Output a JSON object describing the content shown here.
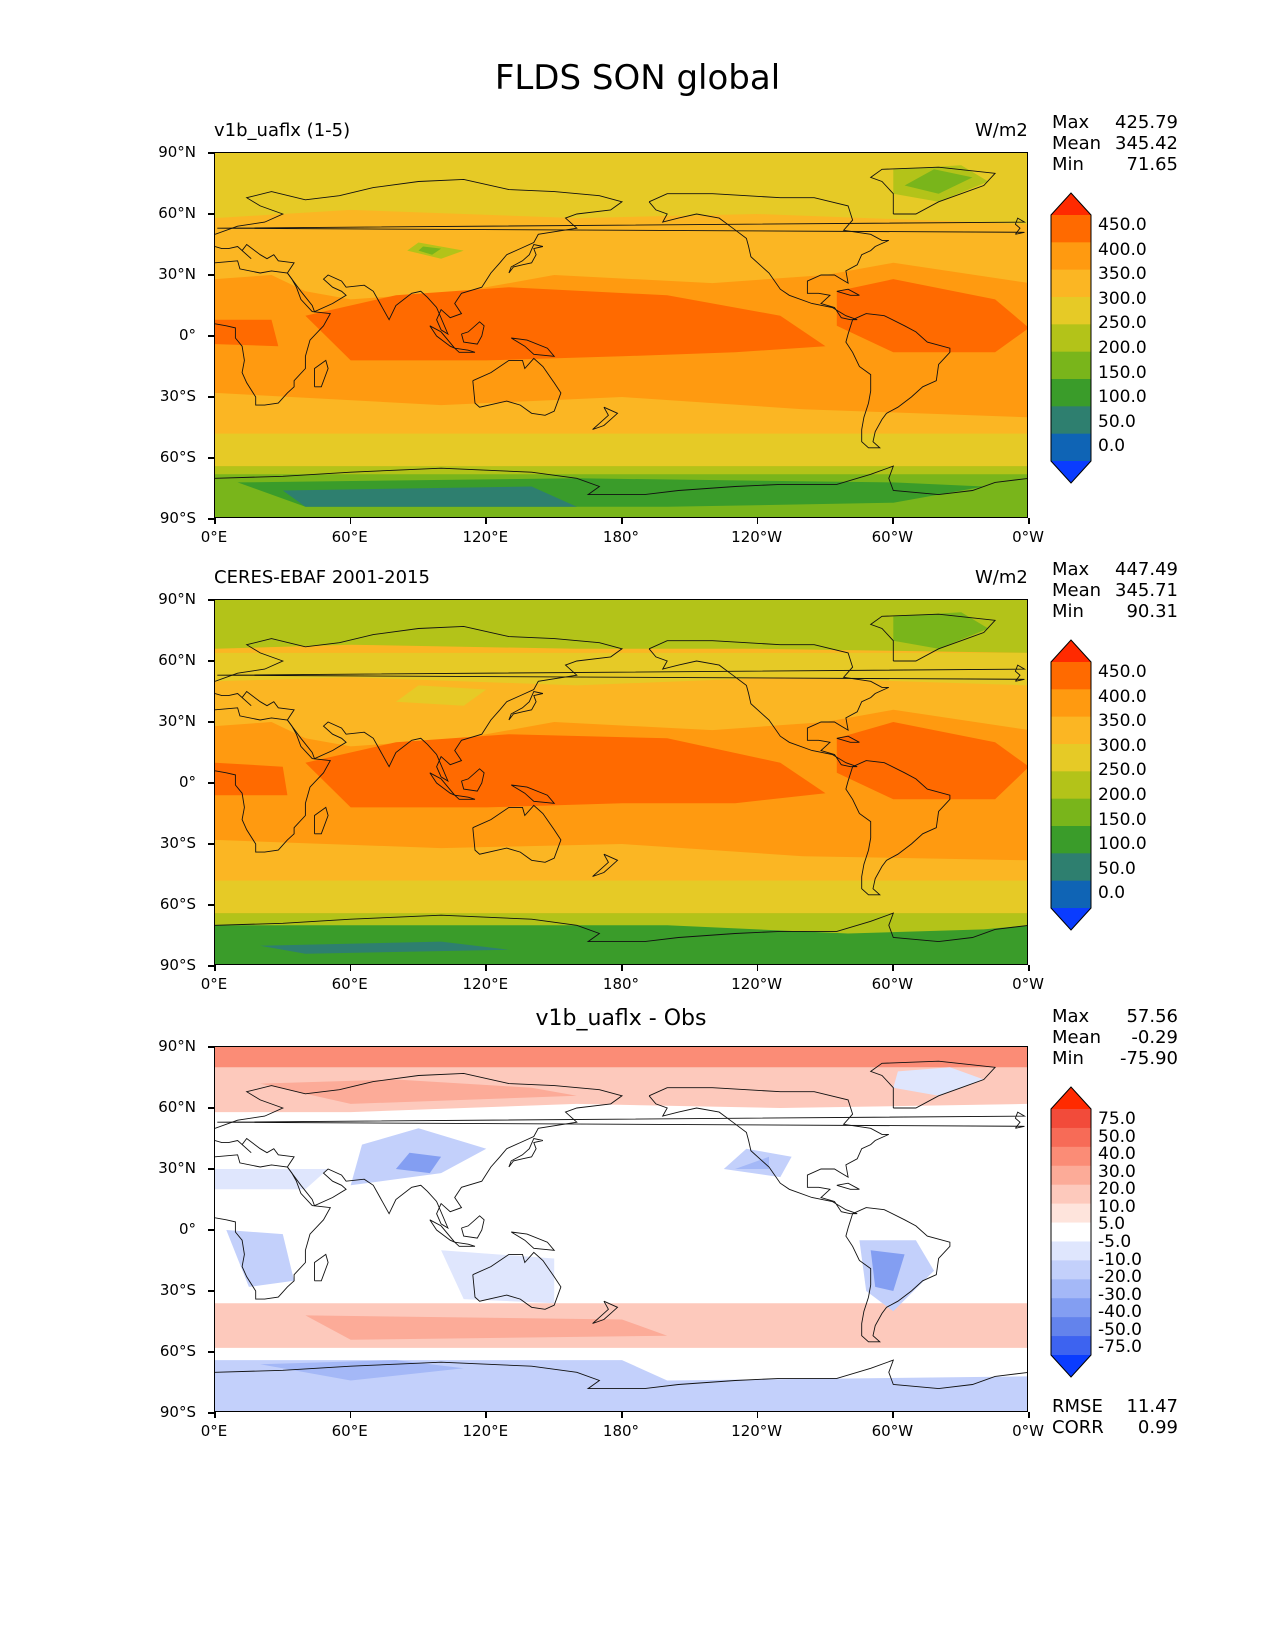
{
  "figure_title": "FLDS SON global",
  "lat_ticks": [
    "90°N",
    "60°N",
    "30°N",
    "0°",
    "30°S",
    "60°S",
    "90°S"
  ],
  "lon_ticks": [
    "0°E",
    "60°E",
    "120°E",
    "180°",
    "120°W",
    "60°W",
    "0°W"
  ],
  "panels": [
    {
      "left_title": "v1b_uaflx (1-5)",
      "center_title": "",
      "units": "W/m2",
      "stats": {
        "max_label": "Max",
        "max": "425.79",
        "mean_label": "Mean",
        "mean": "345.42",
        "min_label": "Min",
        "min": "71.65"
      },
      "colorbar": {
        "labels": [
          "450.0",
          "400.0",
          "350.0",
          "300.0",
          "250.0",
          "200.0",
          "150.0",
          "100.0",
          "50.0",
          "0.0"
        ],
        "colors": [
          "#ff2a00",
          "#ff6a00",
          "#ff9a10",
          "#fbb623",
          "#e6ca26",
          "#b3c319",
          "#79b51b",
          "#3a9c2a",
          "#2e7f6f",
          "#0f64b5",
          "#0a3cff"
        ]
      },
      "map_palette": "abs_model"
    },
    {
      "left_title": "CERES-EBAF 2001-2015",
      "center_title": "",
      "units": "W/m2",
      "stats": {
        "max_label": "Max",
        "max": "447.49",
        "mean_label": "Mean",
        "mean": "345.71",
        "min_label": "Min",
        "min": "90.31"
      },
      "colorbar": {
        "labels": [
          "450.0",
          "400.0",
          "350.0",
          "300.0",
          "250.0",
          "200.0",
          "150.0",
          "100.0",
          "50.0",
          "0.0"
        ],
        "colors": [
          "#ff2a00",
          "#ff6a00",
          "#ff9a10",
          "#fbb623",
          "#e6ca26",
          "#b3c319",
          "#79b51b",
          "#3a9c2a",
          "#2e7f6f",
          "#0f64b5",
          "#0a3cff"
        ]
      },
      "map_palette": "abs_obs"
    },
    {
      "left_title": "",
      "center_title": "v1b_uaflx - Obs",
      "units": "",
      "stats": {
        "max_label": "Max",
        "max": "57.56",
        "mean_label": "Mean",
        "mean": "-0.29",
        "min_label": "Min",
        "min": "-75.90"
      },
      "colorbar": {
        "labels": [
          "75.0",
          "50.0",
          "40.0",
          "30.0",
          "20.0",
          "10.0",
          "5.0",
          "-5.0",
          "-10.0",
          "-20.0",
          "-30.0",
          "-40.0",
          "-50.0",
          "-75.0"
        ],
        "colors": [
          "#ff2a00",
          "#f24b3a",
          "#f76b57",
          "#fb8c76",
          "#fcab98",
          "#fdc9bc",
          "#fee4dc",
          "#ffffff",
          "#dfe6fd",
          "#c3d0fb",
          "#a4b8f7",
          "#839ef2",
          "#6383ec",
          "#3d63f0",
          "#0a3cff"
        ]
      },
      "bottom_stats": {
        "rmse_label": "RMSE",
        "rmse": "11.47",
        "corr_label": "CORR",
        "corr": "0.99"
      },
      "map_palette": "diff"
    }
  ]
}
